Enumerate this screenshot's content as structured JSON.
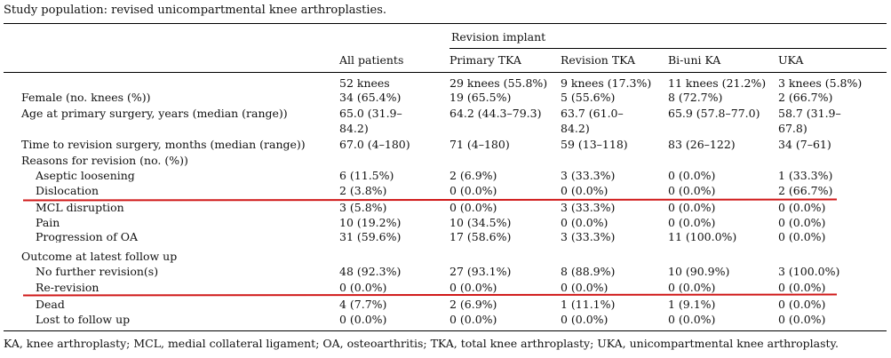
{
  "caption": "Study population: revised unicompartmental knee arthroplasties.",
  "header": {
    "group_label": "Revision implant",
    "columns": [
      "All patients",
      "Primary TKA",
      "Revision TKA",
      "Bi-uni KA",
      "UKA"
    ]
  },
  "rows": [
    {
      "label": "",
      "cells": [
        "52 knees",
        "29 knees (55.8%)",
        "9 knees (17.3%)",
        "11 knees (21.2%)",
        "3 knees (5.8%)"
      ]
    },
    {
      "label": "Female (no. knees (%))",
      "cells": [
        "34 (65.4%)",
        "19 (65.5%)",
        "5 (55.6%)",
        "8 (72.7%)",
        "2 (66.7%)"
      ]
    },
    {
      "label": "Age at primary surgery, years (median (range))",
      "cells": [
        "65.0 (31.9–",
        "64.2 (44.3–79.3)",
        "63.7 (61.0–",
        "65.9 (57.8–77.0)",
        "58.7 (31.9–"
      ]
    },
    {
      "label": "",
      "cells": [
        "84.2)",
        "",
        "84.2)",
        "",
        "67.8)"
      ]
    },
    {
      "label": "Time to revision surgery, months (median (range))",
      "cells": [
        "67.0 (4–180)",
        "71 (4–180)",
        "59 (13–118)",
        "83 (26–122)",
        "34 (7–61)"
      ]
    },
    {
      "label": "Reasons for revision (no. (%))",
      "cells": [
        "",
        "",
        "",
        "",
        ""
      ]
    },
    {
      "label": "Aseptic loosening",
      "cells": [
        "6 (11.5%)",
        "2 (6.9%)",
        "3 (33.3%)",
        "0 (0.0%)",
        "1 (33.3%)"
      ]
    },
    {
      "label": "Dislocation",
      "cells": [
        "2 (3.8%)",
        "0 (0.0%)",
        "0 (0.0%)",
        "0 (0.0%)",
        "2 (66.7%)"
      ]
    },
    {
      "label": "MCL disruption",
      "cells": [
        "3 (5.8%)",
        "0 (0.0%)",
        "3 (33.3%)",
        "0 (0.0%)",
        "0 (0.0%)"
      ]
    },
    {
      "label": "Pain",
      "cells": [
        "10 (19.2%)",
        "10 (34.5%)",
        "0 (0.0%)",
        "0 (0.0%)",
        "0 (0.0%)"
      ]
    },
    {
      "label": "Progression of OA",
      "cells": [
        "31 (59.6%)",
        "17 (58.6%)",
        "3 (33.3%)",
        "11 (100.0%)",
        "0 (0.0%)"
      ]
    },
    {
      "label": "Outcome at latest follow up",
      "cells": [
        "",
        "",
        "",
        "",
        ""
      ]
    },
    {
      "label": "No further revision(s)",
      "cells": [
        "48 (92.3%)",
        "27 (93.1%)",
        "8 (88.9%)",
        "10 (90.9%)",
        "3 (100.0%)"
      ]
    },
    {
      "label": "Re-revision",
      "cells": [
        "0 (0.0%)",
        "0 (0.0%)",
        "0 (0.0%)",
        "0 (0.0%)",
        "0 (0.0%)"
      ]
    },
    {
      "label": "Dead",
      "cells": [
        "4 (7.7%)",
        "2 (6.9%)",
        "1 (11.1%)",
        "1 (9.1%)",
        "0 (0.0%)"
      ]
    },
    {
      "label": "Lost to follow up",
      "cells": [
        "0 (0.0%)",
        "0 (0.0%)",
        "0 (0.0%)",
        "0 (0.0%)",
        "0 (0.0%)"
      ]
    }
  ],
  "footnote": "KA, knee arthroplasty; MCL, medial collateral ligament; OA, osteoarthritis; TKA, total knee arthroplasty; UKA, unicompartmental knee arthroplasty.",
  "colors": {
    "rule": "#000000",
    "highlight_line": "#d01818",
    "text": "#111111"
  }
}
